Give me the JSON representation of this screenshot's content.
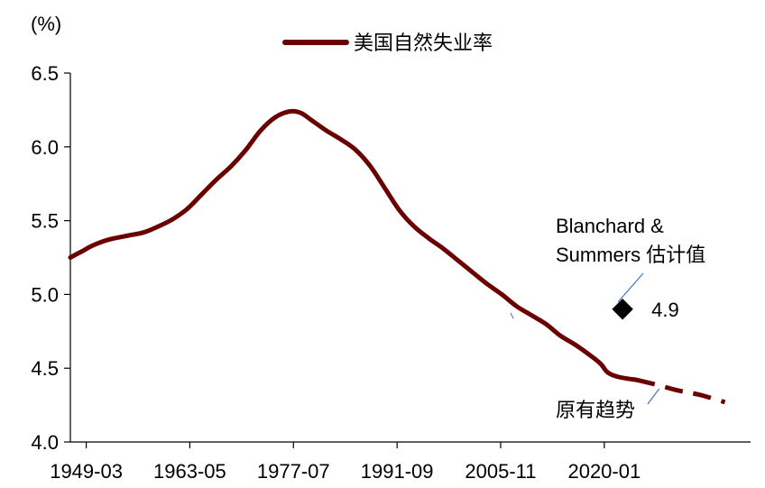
{
  "chart_data": {
    "type": "line",
    "unit_label": "(%)",
    "ylim": [
      4.0,
      6.5
    ],
    "yticks": [
      "4.0",
      "4.5",
      "5.0",
      "5.5",
      "6.0",
      "6.5"
    ],
    "xlim": [
      1947.0,
      2040.0
    ],
    "xticks": [
      {
        "label": "1949-03",
        "x": 1949.17
      },
      {
        "label": "1963-05",
        "x": 1963.33
      },
      {
        "label": "1977-07",
        "x": 1977.5
      },
      {
        "label": "1991-09",
        "x": 1991.67
      },
      {
        "label": "2005-11",
        "x": 2005.83
      },
      {
        "label": "2020-01",
        "x": 2020.0
      }
    ],
    "legend": {
      "position": "top-center"
    },
    "series": [
      {
        "name": "美国自然失业率",
        "color": "#6b0000",
        "style": "solid",
        "points": [
          [
            1947.0,
            5.25
          ],
          [
            1948.5,
            5.29
          ],
          [
            1950.0,
            5.33
          ],
          [
            1951.5,
            5.36
          ],
          [
            1953.0,
            5.38
          ],
          [
            1955.0,
            5.4
          ],
          [
            1957.0,
            5.42
          ],
          [
            1959.0,
            5.46
          ],
          [
            1961.0,
            5.51
          ],
          [
            1963.0,
            5.58
          ],
          [
            1965.0,
            5.68
          ],
          [
            1967.0,
            5.78
          ],
          [
            1969.0,
            5.87
          ],
          [
            1971.0,
            5.98
          ],
          [
            1973.0,
            6.11
          ],
          [
            1975.0,
            6.2
          ],
          [
            1977.0,
            6.24
          ],
          [
            1978.5,
            6.23
          ],
          [
            1980.0,
            6.18
          ],
          [
            1982.0,
            6.11
          ],
          [
            1984.0,
            6.05
          ],
          [
            1986.0,
            5.98
          ],
          [
            1988.0,
            5.87
          ],
          [
            1990.0,
            5.72
          ],
          [
            1992.0,
            5.57
          ],
          [
            1994.0,
            5.46
          ],
          [
            1996.0,
            5.38
          ],
          [
            1998.0,
            5.31
          ],
          [
            2000.0,
            5.23
          ],
          [
            2002.0,
            5.15
          ],
          [
            2004.0,
            5.07
          ],
          [
            2006.0,
            5.0
          ],
          [
            2008.0,
            4.92
          ],
          [
            2010.0,
            4.86
          ],
          [
            2012.0,
            4.8
          ],
          [
            2014.0,
            4.72
          ],
          [
            2016.0,
            4.66
          ],
          [
            2018.0,
            4.59
          ],
          [
            2019.5,
            4.53
          ],
          [
            2020.5,
            4.47
          ],
          [
            2022.0,
            4.44
          ],
          [
            2024.5,
            4.42
          ]
        ]
      },
      {
        "name": "原有趋势",
        "color": "#6b0000",
        "style": "dashed",
        "points": [
          [
            2024.5,
            4.42
          ],
          [
            2027.0,
            4.39
          ],
          [
            2030.0,
            4.35
          ],
          [
            2033.0,
            4.32
          ],
          [
            2036.5,
            4.27
          ]
        ]
      }
    ],
    "estimate_point": {
      "label_line1": "Blanchard &",
      "label_line2": "Summers 估计值",
      "x": 2022.5,
      "y": 4.9,
      "value_label": "4.9"
    },
    "trend_label": "原有趋势"
  }
}
